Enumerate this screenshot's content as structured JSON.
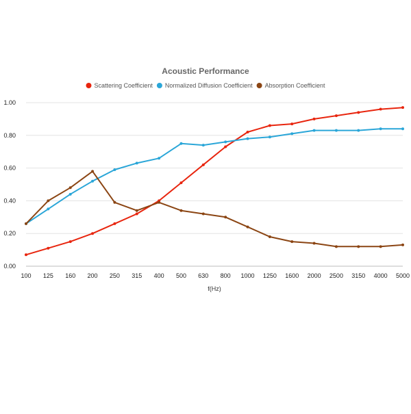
{
  "chart_data": {
    "type": "line",
    "title": "Acoustic Performance",
    "xlabel": "f(Hz)",
    "ylabel": "",
    "categories": [
      "100",
      "125",
      "160",
      "200",
      "250",
      "315",
      "400",
      "500",
      "630",
      "800",
      "1000",
      "1250",
      "1600",
      "2000",
      "2500",
      "3150",
      "4000",
      "5000"
    ],
    "ylim": [
      0,
      1.0
    ],
    "yticks": [
      "0.00",
      "0.20",
      "0.40",
      "0.60",
      "0.80",
      "1.00"
    ],
    "grid": true,
    "legend_position": "top",
    "series": [
      {
        "name": "Scattering Coefficient",
        "color": "#e8250e",
        "values": [
          0.07,
          0.11,
          0.15,
          0.2,
          0.26,
          0.32,
          0.4,
          0.51,
          0.62,
          0.73,
          0.82,
          0.86,
          0.87,
          0.9,
          0.92,
          0.94,
          0.96,
          0.97
        ]
      },
      {
        "name": "Normalized Diffusion Coefficient",
        "color": "#2aa6d8",
        "values": [
          0.26,
          0.35,
          0.44,
          0.52,
          0.59,
          0.63,
          0.66,
          0.75,
          0.74,
          0.76,
          0.78,
          0.79,
          0.81,
          0.83,
          0.83,
          0.83,
          0.84,
          0.84
        ]
      },
      {
        "name": "Absorption Coefficient",
        "color": "#8b4513",
        "values": [
          0.26,
          0.4,
          0.48,
          0.58,
          0.39,
          0.34,
          0.39,
          0.34,
          0.32,
          0.3,
          0.24,
          0.18,
          0.15,
          0.14,
          0.12,
          0.12,
          0.12,
          0.13
        ]
      }
    ]
  }
}
